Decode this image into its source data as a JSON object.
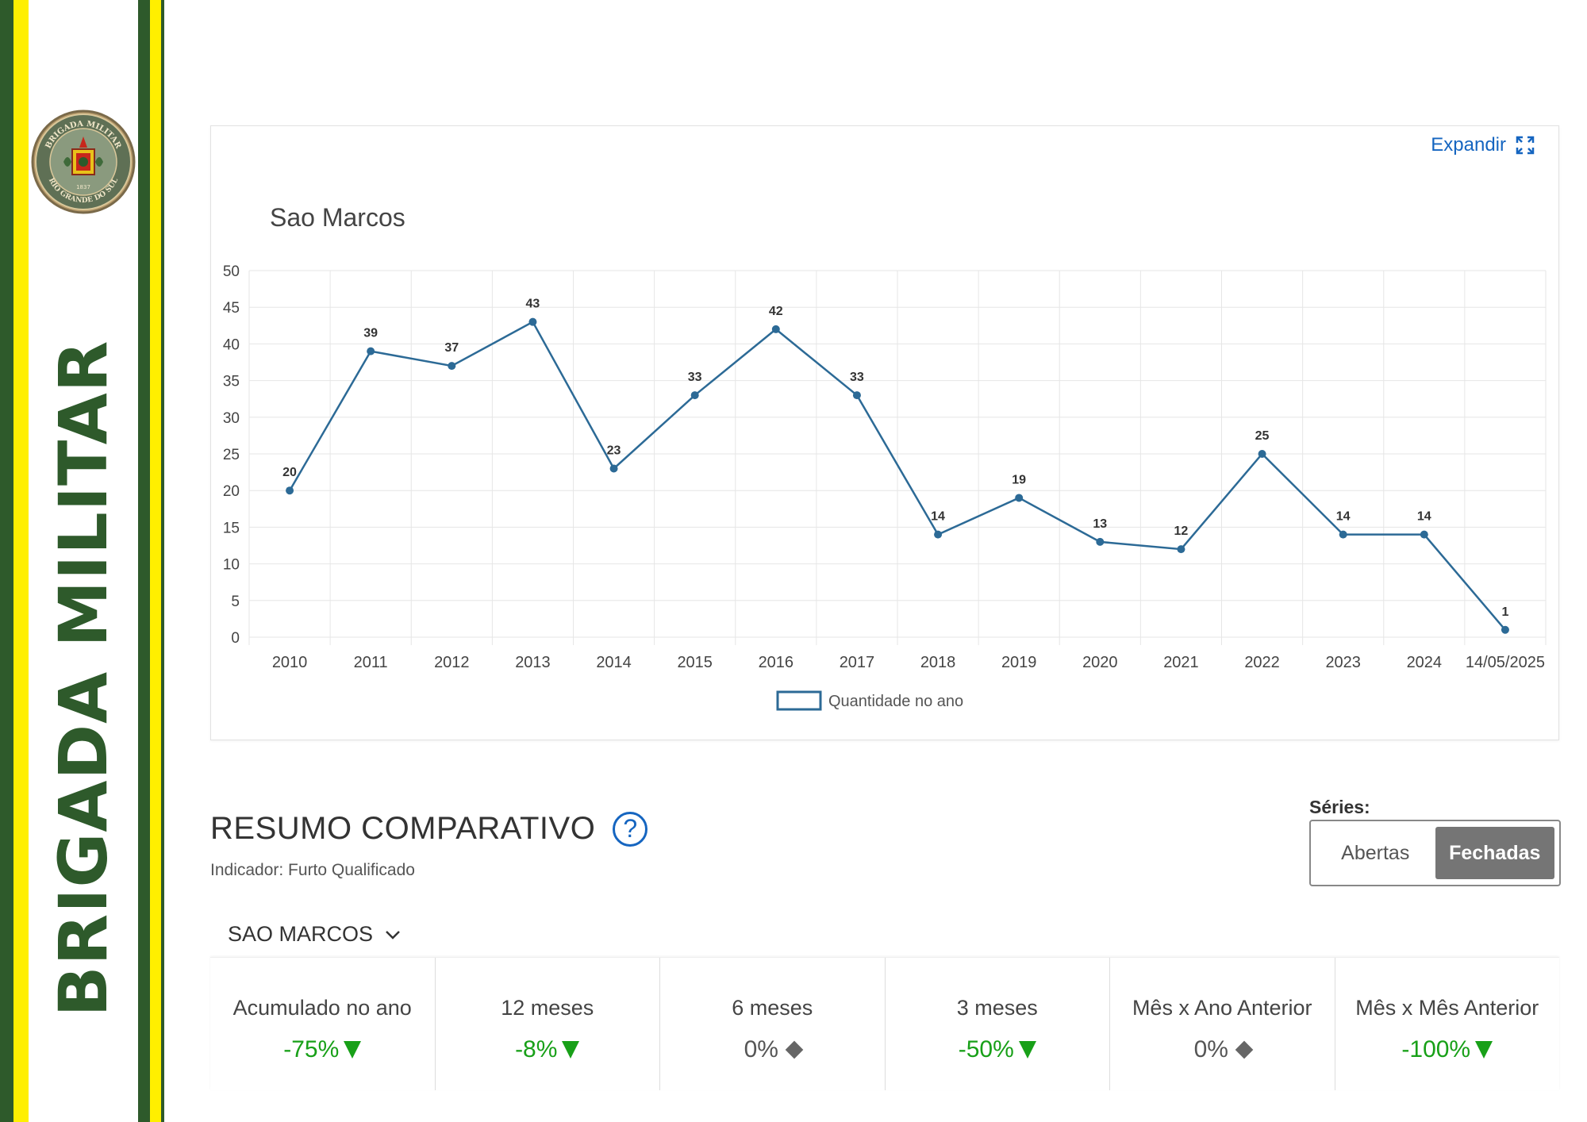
{
  "banner": {
    "text": "BRIGADA MILITAR",
    "emblem_text_top": "BRIGADA MILITAR",
    "emblem_text_bottom": "RIO GRANDE DO SUL",
    "emblem_year": "1837"
  },
  "chart_card": {
    "expand_label": "Expandir",
    "expand_icon": "expand-icon"
  },
  "chart_data": {
    "type": "line",
    "title": "Sao Marcos",
    "categories": [
      "2010",
      "2011",
      "2012",
      "2013",
      "2014",
      "2015",
      "2016",
      "2017",
      "2018",
      "2019",
      "2020",
      "2021",
      "2022",
      "2023",
      "2024",
      "14/05/2025"
    ],
    "series": [
      {
        "name": "Quantidade no ano",
        "values": [
          20,
          39,
          37,
          43,
          23,
          33,
          42,
          33,
          14,
          19,
          13,
          12,
          25,
          14,
          14,
          1
        ],
        "color": "#2c6a96"
      }
    ],
    "ylim": [
      0,
      50
    ],
    "yticks": [
      0,
      5,
      10,
      15,
      20,
      25,
      30,
      35,
      40,
      45,
      50
    ],
    "grid": true,
    "legend": "bottom",
    "xlabel": "",
    "ylabel": ""
  },
  "summary": {
    "title": "RESUMO COMPARATIVO",
    "help_icon": "?",
    "indicator": "Indicador: Furto Qualificado",
    "series_label": "Séries:",
    "series_options": [
      "Abertas",
      "Fechadas"
    ],
    "series_selected": "Fechadas",
    "location": "SAO MARCOS",
    "cards": [
      {
        "label": "Acumulado no ano",
        "value": "-75%",
        "trend": "down"
      },
      {
        "label": "12 meses",
        "value": "-8%",
        "trend": "down"
      },
      {
        "label": "6 meses",
        "value": "0%",
        "trend": "flat"
      },
      {
        "label": "3 meses",
        "value": "-50%",
        "trend": "down"
      },
      {
        "label": "Mês x Ano Anterior",
        "value": "0%",
        "trend": "flat"
      },
      {
        "label": "Mês x Mês Anterior",
        "value": "-100%",
        "trend": "down"
      }
    ]
  },
  "colors": {
    "dark_green": "#2e5a2b",
    "yellow": "#ffef00",
    "link_blue": "#1565c0",
    "down_green": "#18a018",
    "line_blue": "#2c6a96"
  }
}
